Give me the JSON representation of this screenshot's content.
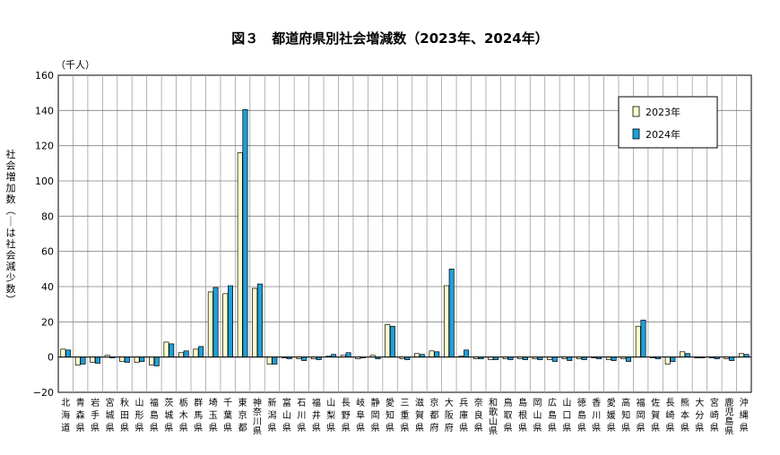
{
  "chart_data": {
    "type": "bar",
    "title": "図３　都道府県別社会増減数（2023年、2024年）",
    "unit_label": "（千人）",
    "ylabel": "社会増加数（－は社会減少数）",
    "xlabel": "",
    "ylim": [
      -20,
      160
    ],
    "yticks": [
      "160",
      "140",
      "120",
      "100",
      "80",
      "60",
      "40",
      "20",
      "0",
      "−20"
    ],
    "grid": true,
    "legend_position": "top-right",
    "categories": [
      "北海道",
      "青森県",
      "岩手県",
      "宮城県",
      "秋田県",
      "山形県",
      "福島県",
      "茨城県",
      "栃木県",
      "群馬県",
      "埼玉県",
      "千葉県",
      "東京都",
      "神奈川県",
      "新潟県",
      "富山県",
      "石川県",
      "福井県",
      "山梨県",
      "長野県",
      "岐阜県",
      "静岡県",
      "愛知県",
      "三重県",
      "滋賀県",
      "京都府",
      "大阪府",
      "兵庫県",
      "奈良県",
      "和歌山県",
      "鳥取県",
      "島根県",
      "岡山県",
      "広島県",
      "山口県",
      "徳島県",
      "香川県",
      "愛媛県",
      "高知県",
      "福岡県",
      "佐賀県",
      "長崎県",
      "熊本県",
      "大分県",
      "宮崎県",
      "鹿児島県",
      "沖縄県"
    ],
    "series": [
      {
        "name": "2023年",
        "color": "#ffffcc",
        "values": [
          4.5,
          -4.5,
          -3,
          1,
          -2.5,
          -3,
          -4.5,
          8.5,
          2.5,
          4.5,
          37,
          36,
          116,
          39,
          -4,
          -0.5,
          -1,
          -1,
          0.5,
          1,
          -1,
          1,
          18.5,
          -1,
          2,
          3.5,
          40.5,
          0.5,
          -1,
          -1.5,
          -1,
          -1,
          -1,
          -1.5,
          -1,
          -1,
          -0.5,
          -1.5,
          -1,
          17.5,
          -0.5,
          -4,
          3,
          -0.5,
          -0.5,
          -1,
          2
        ]
      },
      {
        "name": "2024年",
        "color": "#1ea0d8",
        "values": [
          4,
          -4,
          -3.5,
          -0.5,
          -3,
          -2.5,
          -5,
          7.5,
          3.5,
          6,
          39.5,
          40.5,
          140.5,
          41.5,
          -4,
          -1,
          -2,
          -1.5,
          1.5,
          2.5,
          -0.5,
          -1,
          17.5,
          -1.5,
          1.5,
          3,
          50,
          4,
          -1,
          -1.5,
          -1.5,
          -1.5,
          -1.5,
          -2.5,
          -2,
          -1.5,
          -1,
          -2,
          -2.5,
          21,
          -1,
          -2.5,
          2,
          -0.5,
          -1,
          -2,
          1.5
        ]
      }
    ]
  }
}
